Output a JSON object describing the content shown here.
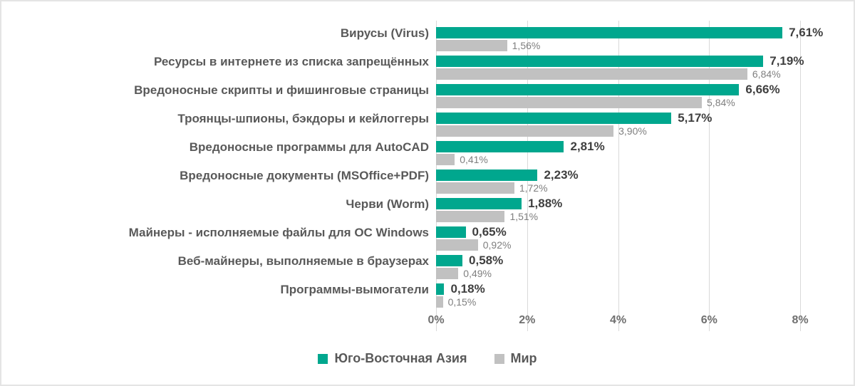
{
  "chart_data": {
    "type": "bar",
    "orientation": "horizontal",
    "title": "",
    "categories": [
      "Вирусы (Virus)",
      "Ресурсы в интернете из списка запрещённых",
      "Вредоносные скрипты и фишинговые страницы",
      "Троянцы-шпионы, бэкдоры и кейлоггеры",
      "Вредоносные программы для AutoCAD",
      "Вредоносные документы (MSOffice+PDF)",
      "Черви (Worm)",
      "Майнеры - исполняемые файлы для ОС Windows",
      "Веб-майнеры, выполняемые в браузерах",
      "Программы-вымогатели"
    ],
    "series": [
      {
        "name": "Юго-Восточная Азия",
        "color": "#00A78E",
        "values": [
          7.61,
          7.19,
          6.66,
          5.17,
          2.81,
          2.23,
          1.88,
          0.65,
          0.58,
          0.18
        ],
        "labels": [
          "7,61%",
          "7,19%",
          "6,66%",
          "5,17%",
          "2,81%",
          "2,23%",
          "1,88%",
          "0,65%",
          "0,58%",
          "0,18%"
        ]
      },
      {
        "name": "Мир",
        "color": "#C1C1C1",
        "values": [
          1.56,
          6.84,
          5.84,
          3.9,
          0.41,
          1.72,
          1.51,
          0.92,
          0.49,
          0.15
        ],
        "labels": [
          "1,56%",
          "6,84%",
          "5,84%",
          "3,90%",
          "0,41%",
          "1,72%",
          "1,51%",
          "0,92%",
          "0,49%",
          "0,15%"
        ]
      }
    ],
    "x_ticks": [
      "0%",
      "2%",
      "4%",
      "6%",
      "8%"
    ],
    "xlim": [
      0,
      8
    ],
    "grid": "vertical",
    "legend_position": "bottom-center"
  },
  "colors": {
    "series_0": "#00A78E",
    "series_1": "#C1C1C1",
    "gridline": "#d9d9d9",
    "category_label": "#595959",
    "value_label_bold": "#3f3f3f",
    "value_label_gray": "#7f7f7f"
  }
}
